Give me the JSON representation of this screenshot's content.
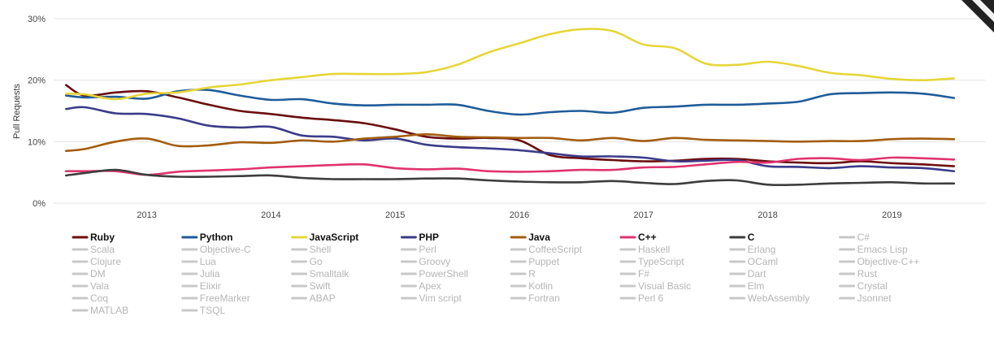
{
  "chart_data": {
    "type": "line",
    "title": "",
    "xlabel": "",
    "ylabel": "Pull Requests",
    "y_ticks": [
      "0%",
      "10%",
      "20%",
      "30%"
    ],
    "y_tick_values": [
      0,
      10,
      20,
      30
    ],
    "x_ticks": [
      "2013",
      "2014",
      "2015",
      "2016",
      "2017",
      "2018",
      "2019"
    ],
    "x_tick_values": [
      2013,
      2014,
      2015,
      2016,
      2017,
      2018,
      2019
    ],
    "xlim": [
      2012.25,
      2019.75
    ],
    "ylim": [
      0,
      30
    ],
    "grid": "horizontal",
    "legend_placement": "bottom",
    "series": [
      {
        "name": "Ruby",
        "color": "#6b0d0d",
        "active": true,
        "x": [
          2012.35,
          2012.5,
          2012.75,
          2013.0,
          2013.25,
          2013.5,
          2013.75,
          2014.0,
          2014.25,
          2014.5,
          2014.75,
          2015.0,
          2015.25,
          2015.5,
          2015.75,
          2016.0,
          2016.25,
          2016.5,
          2016.75,
          2017.0,
          2017.25,
          2017.5,
          2017.75,
          2018.0,
          2018.25,
          2018.5,
          2018.75,
          2019.0,
          2019.25,
          2019.5
        ],
        "y": [
          19.2,
          17.5,
          18.0,
          18.2,
          17.2,
          16.0,
          15.0,
          14.5,
          13.9,
          13.5,
          13.0,
          12.0,
          10.8,
          10.5,
          10.6,
          10.2,
          7.8,
          7.3,
          7.0,
          6.8,
          6.9,
          7.2,
          7.2,
          6.8,
          6.6,
          6.5,
          6.8,
          6.5,
          6.3,
          6.0
        ]
      },
      {
        "name": "Python",
        "color": "#1f5c99",
        "active": true,
        "x": [
          2012.35,
          2012.5,
          2012.75,
          2013.0,
          2013.25,
          2013.5,
          2013.75,
          2014.0,
          2014.25,
          2014.5,
          2014.75,
          2015.0,
          2015.25,
          2015.5,
          2015.75,
          2016.0,
          2016.25,
          2016.5,
          2016.75,
          2017.0,
          2017.25,
          2017.5,
          2017.75,
          2018.0,
          2018.25,
          2018.5,
          2018.75,
          2019.0,
          2019.25,
          2019.5
        ],
        "y": [
          17.5,
          17.2,
          17.3,
          17.0,
          18.2,
          18.4,
          17.5,
          16.8,
          16.9,
          16.2,
          15.9,
          16.0,
          16.0,
          16.0,
          15.0,
          14.4,
          14.8,
          15.0,
          14.7,
          15.5,
          15.7,
          16.0,
          16.0,
          16.2,
          16.5,
          17.7,
          17.9,
          18.0,
          17.8,
          17.1
        ]
      },
      {
        "name": "JavaScript",
        "color": "#e6d638",
        "active": true,
        "x": [
          2012.35,
          2012.5,
          2012.75,
          2013.0,
          2013.25,
          2013.5,
          2013.75,
          2014.0,
          2014.25,
          2014.5,
          2014.75,
          2015.0,
          2015.25,
          2015.5,
          2015.75,
          2016.0,
          2016.25,
          2016.5,
          2016.75,
          2017.0,
          2017.25,
          2017.5,
          2017.75,
          2018.0,
          2018.25,
          2018.5,
          2018.75,
          2019.0,
          2019.25,
          2019.5
        ],
        "y": [
          17.8,
          17.7,
          16.9,
          17.8,
          18.0,
          18.8,
          19.3,
          20.0,
          20.5,
          21.0,
          21.0,
          21.0,
          21.3,
          22.5,
          24.5,
          26.0,
          27.5,
          28.3,
          28.0,
          25.8,
          25.2,
          22.7,
          22.5,
          23.0,
          22.3,
          21.2,
          20.8,
          20.2,
          20.0,
          20.3
        ]
      },
      {
        "name": "PHP",
        "color": "#3b3b8a",
        "active": true,
        "x": [
          2012.35,
          2012.5,
          2012.75,
          2013.0,
          2013.25,
          2013.5,
          2013.75,
          2014.0,
          2014.25,
          2014.5,
          2014.75,
          2015.0,
          2015.25,
          2015.5,
          2015.75,
          2016.0,
          2016.25,
          2016.5,
          2016.75,
          2017.0,
          2017.25,
          2017.5,
          2017.75,
          2018.0,
          2018.25,
          2018.5,
          2018.75,
          2019.0,
          2019.25,
          2019.5
        ],
        "y": [
          15.3,
          15.6,
          14.6,
          14.5,
          13.8,
          12.6,
          12.3,
          12.4,
          11.0,
          10.8,
          10.2,
          10.5,
          9.5,
          9.1,
          8.9,
          8.6,
          8.1,
          7.6,
          7.6,
          7.4,
          6.8,
          6.9,
          7.0,
          6.0,
          5.9,
          5.7,
          6.0,
          5.8,
          5.7,
          5.2
        ]
      },
      {
        "name": "Java",
        "color": "#a35d0f",
        "active": true,
        "x": [
          2012.35,
          2012.5,
          2012.75,
          2013.0,
          2013.25,
          2013.5,
          2013.75,
          2014.0,
          2014.25,
          2014.5,
          2014.75,
          2015.0,
          2015.25,
          2015.5,
          2015.75,
          2016.0,
          2016.25,
          2016.5,
          2016.75,
          2017.0,
          2017.25,
          2017.5,
          2017.75,
          2018.0,
          2018.25,
          2018.5,
          2018.75,
          2019.0,
          2019.25,
          2019.5
        ],
        "y": [
          8.5,
          8.8,
          10.0,
          10.5,
          9.3,
          9.4,
          9.9,
          9.8,
          10.2,
          10.0,
          10.5,
          10.8,
          11.2,
          10.8,
          10.7,
          10.6,
          10.6,
          10.2,
          10.6,
          10.1,
          10.6,
          10.3,
          10.2,
          10.1,
          10.0,
          10.1,
          10.1,
          10.4,
          10.5,
          10.4
        ]
      },
      {
        "name": "C++",
        "color": "#e0336f",
        "active": true,
        "x": [
          2012.35,
          2012.5,
          2012.75,
          2013.0,
          2013.25,
          2013.5,
          2013.75,
          2014.0,
          2014.25,
          2014.5,
          2014.75,
          2015.0,
          2015.25,
          2015.5,
          2015.75,
          2016.0,
          2016.25,
          2016.5,
          2016.75,
          2017.0,
          2017.25,
          2017.5,
          2017.75,
          2018.0,
          2018.25,
          2018.5,
          2018.75,
          2019.0,
          2019.25,
          2019.5
        ],
        "y": [
          5.2,
          5.2,
          5.2,
          4.6,
          5.1,
          5.3,
          5.5,
          5.8,
          6.0,
          6.2,
          6.3,
          5.7,
          5.5,
          5.6,
          5.2,
          5.1,
          5.2,
          5.4,
          5.4,
          5.8,
          5.9,
          6.3,
          6.7,
          6.6,
          7.2,
          7.3,
          7.0,
          7.4,
          7.3,
          7.1
        ]
      },
      {
        "name": "C",
        "color": "#3d3d3d",
        "active": true,
        "x": [
          2012.35,
          2012.5,
          2012.75,
          2013.0,
          2013.25,
          2013.5,
          2013.75,
          2014.0,
          2014.25,
          2014.5,
          2014.75,
          2015.0,
          2015.25,
          2015.5,
          2015.75,
          2016.0,
          2016.25,
          2016.5,
          2016.75,
          2017.0,
          2017.25,
          2017.5,
          2017.75,
          2018.0,
          2018.25,
          2018.5,
          2018.75,
          2019.0,
          2019.25,
          2019.5
        ],
        "y": [
          4.5,
          4.9,
          5.4,
          4.6,
          4.3,
          4.3,
          4.4,
          4.5,
          4.1,
          3.9,
          3.9,
          3.9,
          4.0,
          4.0,
          3.7,
          3.5,
          3.4,
          3.4,
          3.6,
          3.3,
          3.1,
          3.6,
          3.7,
          3.0,
          3.0,
          3.2,
          3.3,
          3.4,
          3.2,
          3.2
        ]
      }
    ],
    "inactive_color": "#c8c8c8",
    "legend_columns": [
      [
        "Ruby",
        "Scala",
        "Clojure",
        "DM",
        "Vala",
        "Coq",
        "MATLAB"
      ],
      [
        "Python",
        "Objective-C",
        "Lua",
        "Julia",
        "Elixir",
        "FreeMarker",
        "TSQL"
      ],
      [
        "JavaScript",
        "Shell",
        "Go",
        "Smalltalk",
        "Swift",
        "ABAP"
      ],
      [
        "PHP",
        "Perl",
        "Groovy",
        "PowerShell",
        "Apex",
        "Vim script"
      ],
      [
        "Java",
        "CoffeeScript",
        "Puppet",
        "R",
        "Kotlin",
        "Fortran"
      ],
      [
        "C++",
        "Haskell",
        "TypeScript",
        "F#",
        "Visual Basic",
        "Perl 6"
      ],
      [
        "C",
        "Erlang",
        "OCaml",
        "Dart",
        "Elm",
        "WebAssembly"
      ],
      [
        "C#",
        "Emacs Lisp",
        "Objective-C++",
        "Rust",
        "Crystal",
        "Jsonnet"
      ]
    ]
  }
}
